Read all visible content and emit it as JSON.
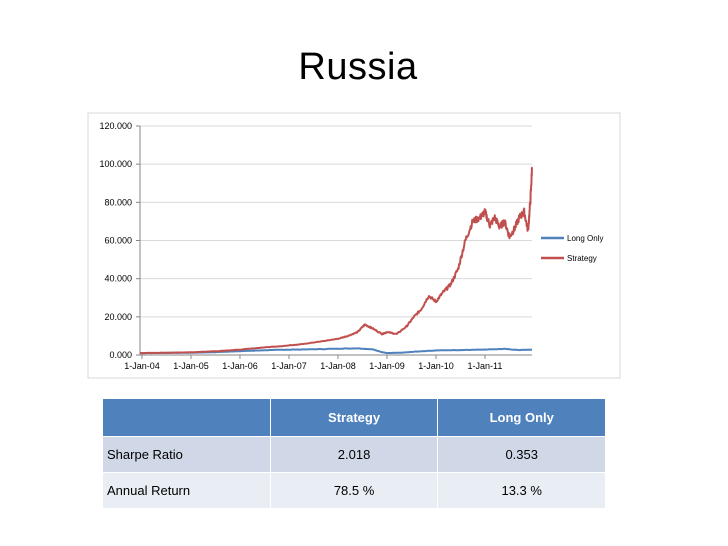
{
  "slide": {
    "title": "Russia"
  },
  "chart_data": {
    "type": "line",
    "title": "",
    "xlabel": "",
    "ylabel": "",
    "ylim": [
      0,
      120
    ],
    "y_ticks": [
      "0.000",
      "20.000",
      "40.000",
      "60.000",
      "80.000",
      "100.000",
      "120.000"
    ],
    "y_tick_values": [
      0,
      20,
      40,
      60,
      80,
      100,
      120
    ],
    "x_ticks": [
      "1-Jan-04",
      "1-Jan-05",
      "1-Jan-06",
      "1-Jan-07",
      "1-Jan-08",
      "1-Jan-09",
      "1-Jan-10",
      "1-Jan-11"
    ],
    "x_tick_values": [
      2004,
      2005,
      2006,
      2007,
      2008,
      2009,
      2010,
      2011
    ],
    "xlim": [
      2003.96,
      2011.96
    ],
    "grid": "horizontal",
    "legend": "right",
    "series": [
      {
        "name": "Long Only",
        "color": "#4f81bd",
        "x": [
          2003.96,
          2004.5,
          2005.0,
          2005.5,
          2006.0,
          2006.5,
          2007.0,
          2007.5,
          2008.0,
          2008.4,
          2008.7,
          2008.9,
          2009.0,
          2009.3,
          2009.6,
          2010.0,
          2010.5,
          2011.0,
          2011.4,
          2011.7,
          2011.96
        ],
        "y": [
          1.0,
          1.1,
          1.2,
          1.5,
          2.0,
          2.5,
          2.8,
          3.0,
          3.3,
          3.5,
          3.0,
          1.5,
          1.0,
          1.2,
          1.8,
          2.4,
          2.6,
          2.9,
          3.2,
          2.6,
          2.8
        ]
      },
      {
        "name": "Strategy",
        "color": "#c0504d",
        "x": [
          2003.96,
          2004.5,
          2005.0,
          2005.5,
          2006.0,
          2006.5,
          2007.0,
          2007.5,
          2008.0,
          2008.2,
          2008.4,
          2008.55,
          2008.7,
          2008.9,
          2009.0,
          2009.2,
          2009.4,
          2009.55,
          2009.7,
          2009.85,
          2010.0,
          2010.15,
          2010.3,
          2010.45,
          2010.6,
          2010.75,
          2010.9,
          2011.0,
          2011.1,
          2011.2,
          2011.3,
          2011.4,
          2011.5,
          2011.6,
          2011.7,
          2011.8,
          2011.88,
          2011.93,
          2011.96
        ],
        "y": [
          1.0,
          1.2,
          1.4,
          2.0,
          2.8,
          4.0,
          5.0,
          6.5,
          8.5,
          10.0,
          12.0,
          16.0,
          14.0,
          11.0,
          12.0,
          11.0,
          15.0,
          20.0,
          24.0,
          31.0,
          28.0,
          33.0,
          37.0,
          45.0,
          60.0,
          70.0,
          72.0,
          75.0,
          68.0,
          72.0,
          67.0,
          70.0,
          62.0,
          66.0,
          72.0,
          75.0,
          65.0,
          82.0,
          98.0
        ]
      }
    ]
  },
  "table": {
    "headers": [
      "",
      "Strategy",
      "Long Only"
    ],
    "rows": [
      {
        "label": "Sharpe Ratio",
        "strategy": "2.018",
        "long_only": "0.353"
      },
      {
        "label": "Annual Return",
        "strategy": "78.5 %",
        "long_only": "13.3 %"
      }
    ],
    "header_color": "#4f81bd"
  }
}
